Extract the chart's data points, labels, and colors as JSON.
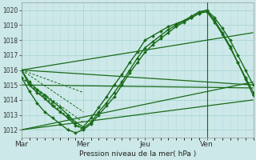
{
  "xlabel": "Pression niveau de la mer( hPa )",
  "ylim": [
    1011.5,
    1020.5
  ],
  "xlim": [
    0,
    90
  ],
  "yticks": [
    1012,
    1013,
    1014,
    1015,
    1016,
    1017,
    1018,
    1019,
    1020
  ],
  "xtick_labels": [
    "Mar",
    "Mer",
    "Jeu",
    "Ven"
  ],
  "xtick_positions": [
    0,
    24,
    48,
    72
  ],
  "vline_x": 72,
  "bg_color": "#cce8e8",
  "grid_major_color": "#aad4d4",
  "grid_minor_color": "#bbdddd",
  "line_color": "#1a6b1a",
  "straight_lines": [
    [
      0,
      1016.0,
      90,
      1018.5
    ],
    [
      0,
      1016.0,
      90,
      1015.0
    ],
    [
      0,
      1015.0,
      90,
      1014.8
    ],
    [
      0,
      1012.0,
      90,
      1015.2
    ],
    [
      0,
      1012.0,
      90,
      1014.0
    ]
  ],
  "jagged_x": [
    0,
    3,
    6,
    9,
    12,
    15,
    18,
    21,
    24,
    27,
    30,
    33,
    36,
    39,
    42,
    45,
    48,
    51,
    54,
    57,
    60,
    63,
    66,
    69,
    72,
    75,
    78,
    81,
    84,
    87,
    90
  ],
  "jagged_y": [
    1016.0,
    1015.0,
    1014.5,
    1014.1,
    1013.6,
    1013.2,
    1012.8,
    1012.3,
    1012.1,
    1012.5,
    1013.2,
    1013.8,
    1014.5,
    1015.2,
    1016.0,
    1016.8,
    1017.5,
    1017.9,
    1018.3,
    1018.7,
    1019.0,
    1019.3,
    1019.6,
    1019.9,
    1020.0,
    1019.5,
    1018.8,
    1018.0,
    1017.0,
    1016.0,
    1015.0
  ],
  "jagged2_x": [
    0,
    3,
    6,
    9,
    12,
    15,
    18,
    21,
    24,
    27,
    30,
    33,
    36,
    39,
    42,
    45,
    48,
    51,
    54,
    57,
    60,
    63,
    66,
    69,
    72,
    75,
    78,
    81,
    84,
    87,
    90
  ],
  "jagged2_y": [
    1016.0,
    1015.2,
    1014.7,
    1014.3,
    1013.9,
    1013.5,
    1013.0,
    1012.5,
    1012.2,
    1012.8,
    1013.5,
    1014.2,
    1015.0,
    1015.7,
    1016.5,
    1017.2,
    1018.0,
    1018.3,
    1018.6,
    1018.9,
    1019.1,
    1019.3,
    1019.5,
    1019.8,
    1019.9,
    1019.2,
    1018.4,
    1017.5,
    1016.5,
    1015.5,
    1014.5
  ],
  "jagged3_x": [
    0,
    3,
    6,
    9,
    12,
    15,
    18,
    21,
    24,
    27,
    30,
    33,
    36,
    39,
    42,
    45,
    48,
    51,
    54,
    57,
    60,
    63,
    66,
    69,
    72,
    75,
    78,
    81,
    84,
    87,
    90
  ],
  "jagged3_y": [
    1015.5,
    1014.6,
    1013.8,
    1013.2,
    1012.8,
    1012.4,
    1012.0,
    1011.8,
    1012.0,
    1012.4,
    1013.0,
    1013.6,
    1014.2,
    1015.0,
    1015.8,
    1016.5,
    1017.2,
    1017.7,
    1018.1,
    1018.5,
    1018.9,
    1019.2,
    1019.5,
    1019.8,
    1020.0,
    1019.3,
    1018.5,
    1017.6,
    1016.5,
    1015.4,
    1014.3
  ],
  "fan_lines": [
    [
      0,
      1016.0,
      24,
      1014.5
    ],
    [
      0,
      1016.0,
      24,
      1013.2
    ],
    [
      0,
      1015.5,
      24,
      1012.5
    ],
    [
      0,
      1015.5,
      24,
      1012.0
    ],
    [
      0,
      1015.5,
      24,
      1011.9
    ]
  ]
}
